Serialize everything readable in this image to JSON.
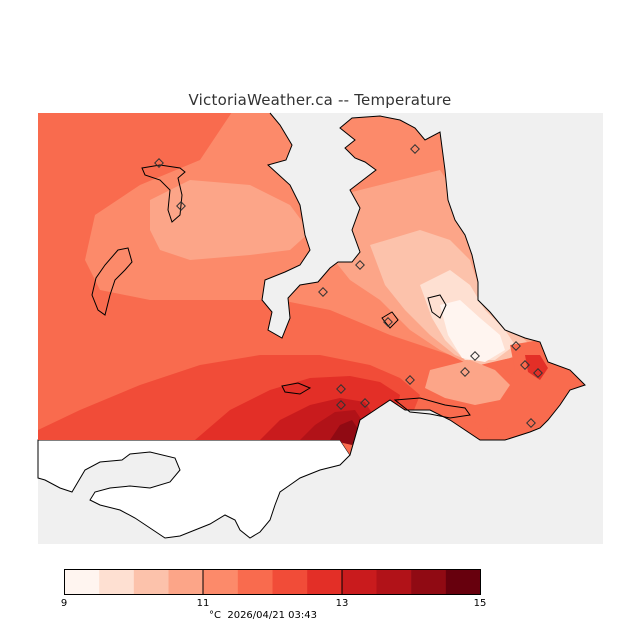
{
  "title": "VictoriaWeather.ca -- Temperature",
  "legend": {
    "min": 9,
    "max": 15,
    "ticks": [
      "9",
      "11",
      "13",
      "15"
    ],
    "colors": [
      "#fff5f0",
      "#fee0d2",
      "#fcc2ab",
      "#fca588",
      "#fc8a6a",
      "#f96b4e",
      "#f14c38",
      "#e32f27",
      "#c91b1d",
      "#b11218",
      "#900a13",
      "#67000d"
    ]
  },
  "footer": {
    "unit": "°C",
    "timestamp": "2026/04/21 03:43"
  },
  "map_colors": {
    "land_gray": "#f0f0f0",
    "white": "#ffffff"
  }
}
